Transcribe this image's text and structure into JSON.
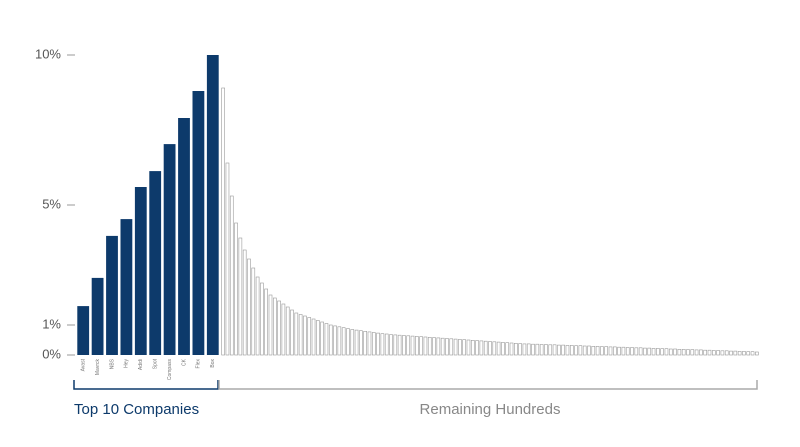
{
  "chart_data": {
    "type": "bar",
    "ylim": [
      0,
      10
    ],
    "yticks": [
      {
        "value": 0,
        "label": "0%"
      },
      {
        "value": 1,
        "label": "1%"
      },
      {
        "value": 5,
        "label": "5%"
      },
      {
        "value": 10,
        "label": "10%"
      }
    ],
    "groups": [
      {
        "label": "Top 10 Companies",
        "color": "#0d3a6b",
        "categories": [
          "Avast",
          "Mavrck",
          "NBS",
          "Hey",
          "Adidi",
          "Spot",
          "Compass",
          "CK",
          "Flex",
          "Box"
        ],
        "values": [
          1.63,
          2.57,
          3.97,
          4.53,
          5.6,
          6.13,
          7.03,
          7.9,
          8.8,
          10
        ]
      },
      {
        "label": "Remaining Hundreds",
        "color": "#9a9a9a",
        "categories": [
          null,
          null,
          null,
          null,
          null,
          null,
          null,
          null,
          null,
          null,
          null,
          null,
          null,
          null,
          null,
          null,
          null,
          null,
          null,
          null,
          null,
          null,
          null,
          null,
          null,
          null,
          null,
          null,
          null,
          null,
          null,
          null,
          null,
          null,
          null,
          null,
          null,
          null,
          null,
          null,
          null,
          null,
          null,
          null,
          null,
          null,
          null,
          null,
          null,
          null,
          null,
          null,
          null,
          null,
          null,
          null,
          null,
          null,
          null,
          null,
          null,
          null,
          null,
          null,
          null,
          null,
          null,
          null,
          null,
          null,
          null,
          null,
          null,
          null,
          null,
          null,
          null,
          null,
          null,
          null,
          null,
          null,
          null,
          null,
          null,
          null,
          null,
          null,
          null,
          null,
          null,
          null,
          null,
          null,
          null,
          null,
          null,
          null,
          null,
          null,
          null,
          null,
          null,
          null,
          null,
          null,
          null,
          null,
          null,
          null,
          null,
          null,
          null,
          null,
          null,
          null,
          null,
          null,
          null,
          null,
          null,
          null,
          null,
          null,
          null
        ],
        "values": [
          8.9,
          6.4,
          5.3,
          4.4,
          3.9,
          3.5,
          3.2,
          2.9,
          2.6,
          2.4,
          2.2,
          2.0,
          1.9,
          1.8,
          1.7,
          1.6,
          1.5,
          1.4,
          1.35,
          1.3,
          1.25,
          1.2,
          1.15,
          1.1,
          1.05,
          1.0,
          0.97,
          0.94,
          0.91,
          0.88,
          0.85,
          0.83,
          0.81,
          0.79,
          0.77,
          0.75,
          0.73,
          0.71,
          0.7,
          0.68,
          0.67,
          0.66,
          0.65,
          0.64,
          0.63,
          0.62,
          0.61,
          0.6,
          0.59,
          0.58,
          0.57,
          0.56,
          0.55,
          0.54,
          0.53,
          0.52,
          0.51,
          0.5,
          0.49,
          0.48,
          0.47,
          0.46,
          0.45,
          0.44,
          0.43,
          0.42,
          0.41,
          0.4,
          0.39,
          0.38,
          0.37,
          0.37,
          0.36,
          0.36,
          0.35,
          0.35,
          0.34,
          0.34,
          0.33,
          0.33,
          0.32,
          0.32,
          0.31,
          0.31,
          0.3,
          0.3,
          0.29,
          0.29,
          0.28,
          0.28,
          0.27,
          0.27,
          0.26,
          0.26,
          0.25,
          0.25,
          0.24,
          0.24,
          0.23,
          0.23,
          0.22,
          0.22,
          0.21,
          0.21,
          0.2,
          0.2,
          0.19,
          0.19,
          0.18,
          0.18,
          0.17,
          0.17,
          0.16,
          0.16,
          0.15,
          0.15,
          0.14,
          0.14,
          0.13,
          0.13,
          0.12,
          0.12,
          0.11,
          0.11,
          0.1
        ]
      }
    ]
  }
}
